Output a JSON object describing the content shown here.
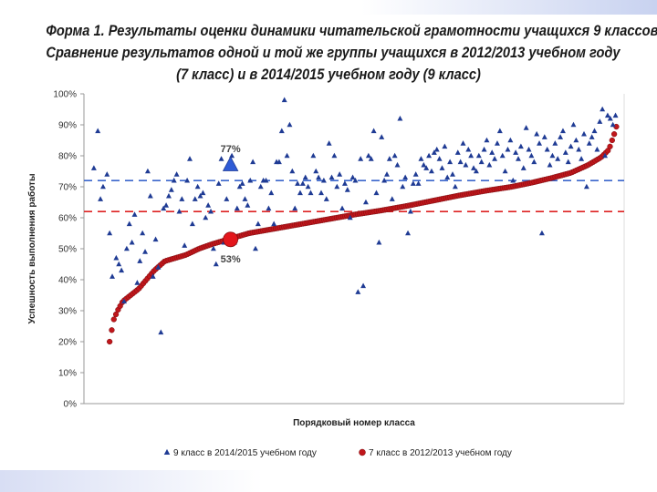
{
  "title_lines": [
    "Форма 1. Результаты оценки динамики читательской грамотности учащихся 9 классов.",
    "Сравнение результатов одной и той же группы учащихся в 2012/2013 учебном году",
    "(7 класс) и в 2014/2015 учебном году (9 класс)"
  ],
  "colors": {
    "series9": "#1f3b94",
    "series7": "#c0161b",
    "series7_edge": "#7a0d10",
    "ref9": "#3a66cc",
    "ref7": "#dd2222",
    "axis": "#999999"
  },
  "chart_data": {
    "type": "scatter",
    "xlabel": "Порядковый номер класса",
    "ylabel": "Успешность выполнения работы",
    "ylim": [
      0,
      100
    ],
    "xlim": [
      0,
      400
    ],
    "yticks": [
      0,
      10,
      20,
      30,
      40,
      50,
      60,
      70,
      80,
      90,
      100
    ],
    "ytick_labels": [
      "0%",
      "10%",
      "20%",
      "30%",
      "40%",
      "50%",
      "60%",
      "70%",
      "80%",
      "90%",
      "100%"
    ],
    "grid": false,
    "legend_position": "bottom",
    "reference_lines": [
      {
        "y": 72,
        "color": "#3a66cc",
        "style": "dashed",
        "series": 0
      },
      {
        "y": 62,
        "color": "#dd2222",
        "style": "dashed",
        "series": 1
      }
    ],
    "highlights": [
      {
        "series": 0,
        "x": 106,
        "y": 77,
        "label": "77%"
      },
      {
        "series": 1,
        "x": 106,
        "y": 53,
        "label": "53%"
      }
    ],
    "series": [
      {
        "name": "9 класс в 2014/2015 учебном году",
        "marker": "triangle",
        "points": [
          [
            2,
            76
          ],
          [
            5,
            88
          ],
          [
            7,
            66
          ],
          [
            9,
            70
          ],
          [
            12,
            74
          ],
          [
            14,
            55
          ],
          [
            16,
            41
          ],
          [
            19,
            47
          ],
          [
            21,
            45
          ],
          [
            23,
            43
          ],
          [
            25,
            33
          ],
          [
            27,
            50
          ],
          [
            29,
            58
          ],
          [
            31,
            52
          ],
          [
            33,
            61
          ],
          [
            35,
            39
          ],
          [
            37,
            46
          ],
          [
            39,
            55
          ],
          [
            41,
            49
          ],
          [
            43,
            75
          ],
          [
            45,
            67
          ],
          [
            47,
            41
          ],
          [
            49,
            53
          ],
          [
            51,
            44
          ],
          [
            53,
            23
          ],
          [
            55,
            63
          ],
          [
            57,
            64
          ],
          [
            59,
            67
          ],
          [
            61,
            69
          ],
          [
            63,
            72
          ],
          [
            65,
            74
          ],
          [
            67,
            62
          ],
          [
            69,
            66
          ],
          [
            71,
            51
          ],
          [
            73,
            72
          ],
          [
            75,
            79
          ],
          [
            77,
            58
          ],
          [
            79,
            66
          ],
          [
            81,
            70
          ],
          [
            83,
            67
          ],
          [
            85,
            68
          ],
          [
            87,
            60
          ],
          [
            89,
            64
          ],
          [
            91,
            62
          ],
          [
            93,
            50
          ],
          [
            95,
            45
          ],
          [
            97,
            71
          ],
          [
            99,
            79
          ],
          [
            101,
            52
          ],
          [
            103,
            66
          ],
          [
            107,
            80
          ],
          [
            109,
            52
          ],
          [
            111,
            63
          ],
          [
            113,
            70
          ],
          [
            115,
            71
          ],
          [
            117,
            66
          ],
          [
            119,
            64
          ],
          [
            121,
            72
          ],
          [
            123,
            78
          ],
          [
            125,
            50
          ],
          [
            127,
            58
          ],
          [
            129,
            70
          ],
          [
            131,
            72
          ],
          [
            133,
            72
          ],
          [
            135,
            63
          ],
          [
            137,
            68
          ],
          [
            139,
            58
          ],
          [
            141,
            78
          ],
          [
            143,
            78
          ],
          [
            145,
            88
          ],
          [
            147,
            98
          ],
          [
            149,
            80
          ],
          [
            151,
            90
          ],
          [
            153,
            75
          ],
          [
            155,
            63
          ],
          [
            157,
            71
          ],
          [
            159,
            68
          ],
          [
            161,
            71
          ],
          [
            163,
            73
          ],
          [
            165,
            70
          ],
          [
            167,
            68
          ],
          [
            169,
            80
          ],
          [
            171,
            75
          ],
          [
            173,
            73
          ],
          [
            175,
            68
          ],
          [
            177,
            72
          ],
          [
            179,
            66
          ],
          [
            181,
            84
          ],
          [
            183,
            73
          ],
          [
            185,
            80
          ],
          [
            187,
            70
          ],
          [
            189,
            74
          ],
          [
            191,
            63
          ],
          [
            193,
            71
          ],
          [
            195,
            69
          ],
          [
            197,
            60
          ],
          [
            199,
            73
          ],
          [
            201,
            72
          ],
          [
            203,
            36
          ],
          [
            205,
            79
          ],
          [
            207,
            38
          ],
          [
            209,
            65
          ],
          [
            211,
            80
          ],
          [
            213,
            79
          ],
          [
            215,
            88
          ],
          [
            217,
            68
          ],
          [
            219,
            52
          ],
          [
            221,
            86
          ],
          [
            223,
            72
          ],
          [
            225,
            74
          ],
          [
            227,
            79
          ],
          [
            229,
            66
          ],
          [
            231,
            80
          ],
          [
            233,
            77
          ],
          [
            235,
            92
          ],
          [
            237,
            70
          ],
          [
            239,
            73
          ],
          [
            241,
            55
          ],
          [
            243,
            62
          ],
          [
            245,
            71
          ],
          [
            247,
            74
          ],
          [
            249,
            71
          ],
          [
            251,
            79
          ],
          [
            253,
            77
          ],
          [
            255,
            76
          ],
          [
            257,
            80
          ],
          [
            259,
            75
          ],
          [
            261,
            81
          ],
          [
            263,
            82
          ],
          [
            265,
            79
          ],
          [
            267,
            76
          ],
          [
            269,
            83
          ],
          [
            271,
            73
          ],
          [
            273,
            78
          ],
          [
            275,
            74
          ],
          [
            277,
            70
          ],
          [
            279,
            81
          ],
          [
            281,
            78
          ],
          [
            283,
            84
          ],
          [
            285,
            77
          ],
          [
            287,
            82
          ],
          [
            289,
            80
          ],
          [
            291,
            76
          ],
          [
            293,
            75
          ],
          [
            295,
            80
          ],
          [
            297,
            78
          ],
          [
            299,
            82
          ],
          [
            301,
            85
          ],
          [
            303,
            77
          ],
          [
            305,
            81
          ],
          [
            307,
            79
          ],
          [
            309,
            84
          ],
          [
            311,
            88
          ],
          [
            313,
            80
          ],
          [
            315,
            75
          ],
          [
            317,
            82
          ],
          [
            319,
            85
          ],
          [
            321,
            72
          ],
          [
            323,
            81
          ],
          [
            325,
            79
          ],
          [
            327,
            83
          ],
          [
            329,
            76
          ],
          [
            331,
            89
          ],
          [
            333,
            82
          ],
          [
            335,
            80
          ],
          [
            337,
            78
          ],
          [
            339,
            87
          ],
          [
            341,
            84
          ],
          [
            343,
            55
          ],
          [
            345,
            86
          ],
          [
            347,
            82
          ],
          [
            349,
            77
          ],
          [
            351,
            80
          ],
          [
            353,
            84
          ],
          [
            355,
            79
          ],
          [
            357,
            86
          ],
          [
            359,
            88
          ],
          [
            361,
            81
          ],
          [
            363,
            78
          ],
          [
            365,
            83
          ],
          [
            367,
            90
          ],
          [
            369,
            85
          ],
          [
            371,
            82
          ],
          [
            373,
            79
          ],
          [
            375,
            87
          ],
          [
            377,
            70
          ],
          [
            379,
            84
          ],
          [
            381,
            86
          ],
          [
            383,
            88
          ],
          [
            385,
            82
          ],
          [
            387,
            91
          ],
          [
            389,
            95
          ],
          [
            391,
            80
          ],
          [
            393,
            93
          ],
          [
            395,
            92
          ],
          [
            397,
            90
          ],
          [
            399,
            93
          ]
        ]
      },
      {
        "name": "7 класс в 2012/2013 учебном году",
        "marker": "circle",
        "curve": [
          [
            14,
            20
          ],
          [
            17,
            27
          ],
          [
            20,
            30
          ],
          [
            24,
            33
          ],
          [
            30,
            35
          ],
          [
            36,
            37
          ],
          [
            42,
            40
          ],
          [
            48,
            43
          ],
          [
            56,
            46
          ],
          [
            64,
            47
          ],
          [
            72,
            48
          ],
          [
            82,
            50
          ],
          [
            92,
            51.5
          ],
          [
            100,
            52.5
          ],
          [
            108,
            53.5
          ],
          [
            120,
            55
          ],
          [
            140,
            56.5
          ],
          [
            160,
            58
          ],
          [
            180,
            59.5
          ],
          [
            200,
            61
          ],
          [
            220,
            62.3
          ],
          [
            240,
            63.8
          ],
          [
            260,
            65.5
          ],
          [
            280,
            67.2
          ],
          [
            300,
            68.7
          ],
          [
            320,
            70
          ],
          [
            335,
            71.3
          ],
          [
            350,
            72.8
          ],
          [
            365,
            74.5
          ],
          [
            378,
            77
          ],
          [
            388,
            79.5
          ],
          [
            394,
            82
          ],
          [
            398,
            87
          ],
          [
            400,
            90
          ]
        ]
      }
    ]
  }
}
